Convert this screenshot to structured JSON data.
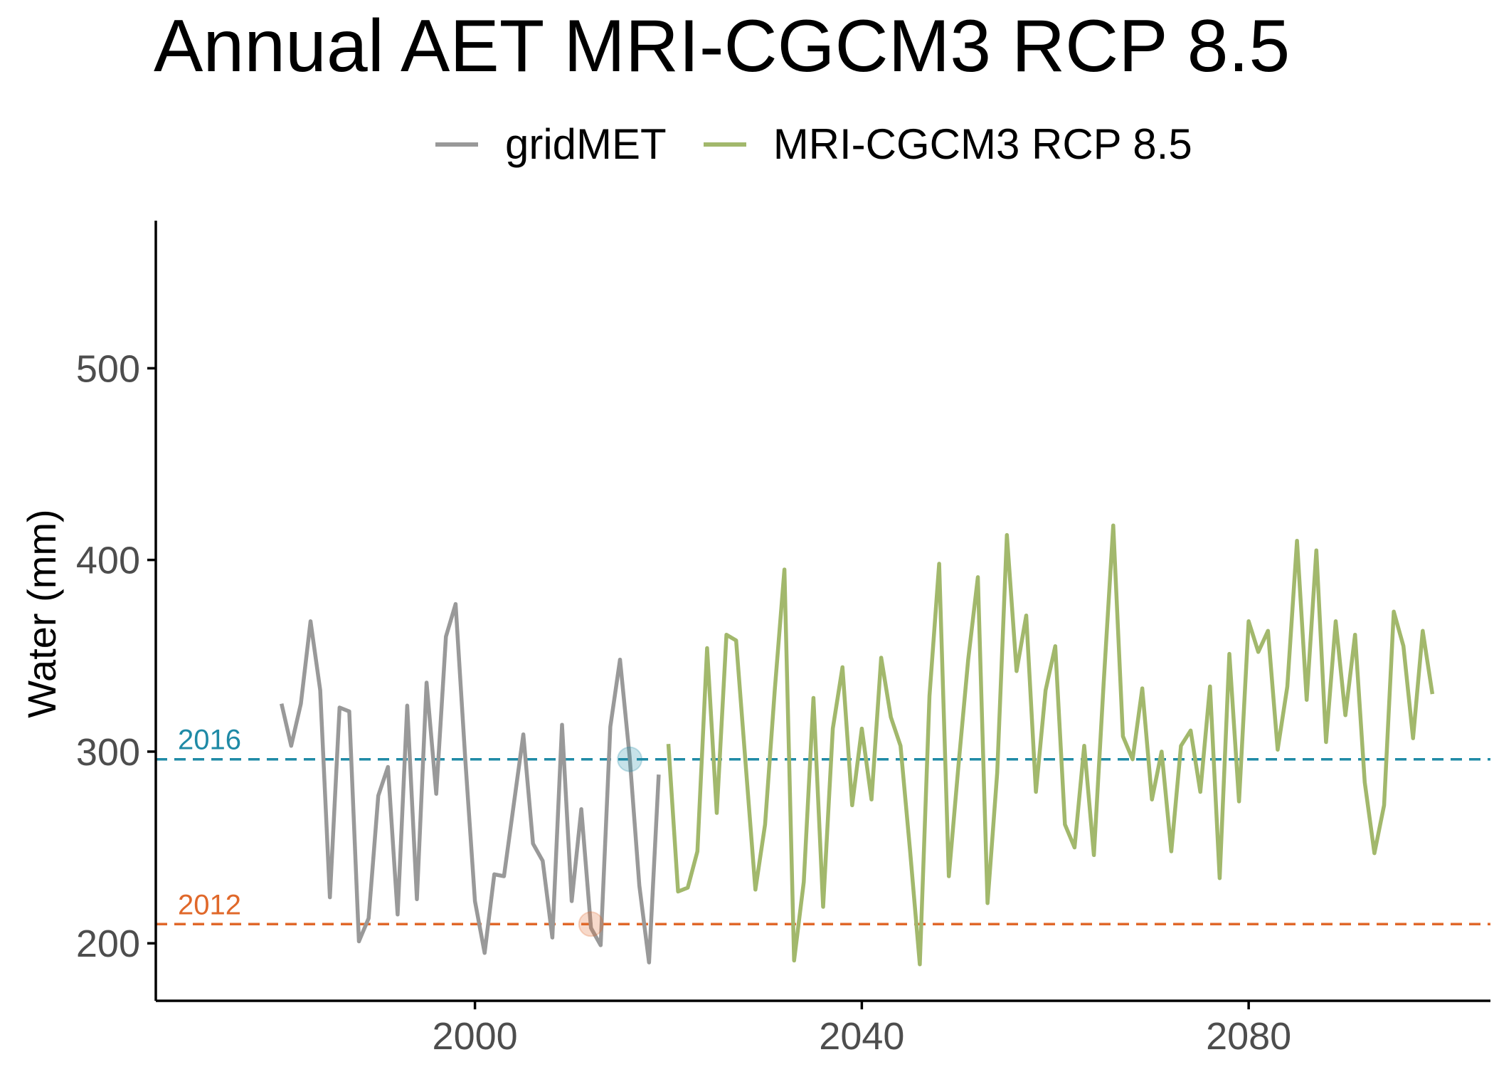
{
  "chart_data": {
    "type": "line",
    "title": "Annual AET MRI-CGCM3 RCP 8.5",
    "ylabel": "Water (mm)",
    "xlabel": "",
    "xlim": [
      1967,
      2105
    ],
    "ylim": [
      170,
      577
    ],
    "x_ticks": [
      2000,
      2040,
      2080
    ],
    "y_ticks": [
      200,
      300,
      400,
      500
    ],
    "grid": false,
    "legend_position": "top",
    "series": [
      {
        "name": "gridMET",
        "color": "#999999",
        "x": [
          1980,
          1981,
          1982,
          1983,
          1984,
          1985,
          1986,
          1987,
          1988,
          1989,
          1990,
          1991,
          1992,
          1993,
          1994,
          1995,
          1996,
          1997,
          1998,
          1999,
          2000,
          2001,
          2002,
          2003,
          2004,
          2005,
          2006,
          2007,
          2008,
          2009,
          2010,
          2011,
          2012,
          2013,
          2014,
          2015,
          2016,
          2017,
          2018,
          2019
        ],
        "y": [
          325,
          303,
          325,
          368,
          332,
          224,
          323,
          321,
          201,
          213,
          277,
          292,
          215,
          324,
          223,
          336,
          278,
          360,
          377,
          296,
          222,
          195,
          236,
          235,
          272,
          309,
          252,
          243,
          203,
          314,
          222,
          270,
          208,
          199,
          313,
          348,
          297,
          230,
          190,
          288
        ]
      },
      {
        "name": "MRI-CGCM3 RCP 8.5",
        "color": "#a2b86c",
        "x": [
          2020,
          2021,
          2022,
          2023,
          2024,
          2025,
          2026,
          2027,
          2028,
          2029,
          2030,
          2031,
          2032,
          2033,
          2034,
          2035,
          2036,
          2037,
          2038,
          2039,
          2040,
          2041,
          2042,
          2043,
          2044,
          2045,
          2046,
          2047,
          2048,
          2049,
          2050,
          2051,
          2052,
          2053,
          2054,
          2055,
          2056,
          2057,
          2058,
          2059,
          2060,
          2061,
          2062,
          2063,
          2064,
          2065,
          2066,
          2067,
          2068,
          2069,
          2070,
          2071,
          2072,
          2073,
          2074,
          2075,
          2076,
          2077,
          2078,
          2079,
          2080,
          2081,
          2082,
          2083,
          2084,
          2085,
          2086,
          2087,
          2088,
          2089,
          2090,
          2091,
          2092,
          2093,
          2094,
          2095,
          2096,
          2097,
          2098,
          2099
        ],
        "y": [
          304,
          227,
          229,
          248,
          354,
          268,
          361,
          358,
          293,
          228,
          262,
          332,
          395,
          191,
          232,
          328,
          219,
          312,
          344,
          272,
          312,
          275,
          349,
          318,
          303,
          248,
          189,
          329,
          398,
          235,
          293,
          348,
          391,
          221,
          289,
          413,
          342,
          371,
          279,
          332,
          355,
          262,
          250,
          303,
          246,
          335,
          418,
          308,
          296,
          333,
          275,
          300,
          248,
          303,
          311,
          279,
          334,
          234,
          351,
          274,
          368,
          352,
          363,
          301,
          334,
          410,
          327,
          405,
          305,
          368,
          319,
          361,
          284,
          247,
          272,
          373,
          355,
          307,
          363,
          330
        ]
      }
    ],
    "reference_lines": [
      {
        "label": "2016",
        "y": 296,
        "color": "#1f8aa6",
        "marker_x": 2016
      },
      {
        "label": "2012",
        "y": 210,
        "color": "#e0682a",
        "marker_x": 2012
      }
    ]
  }
}
